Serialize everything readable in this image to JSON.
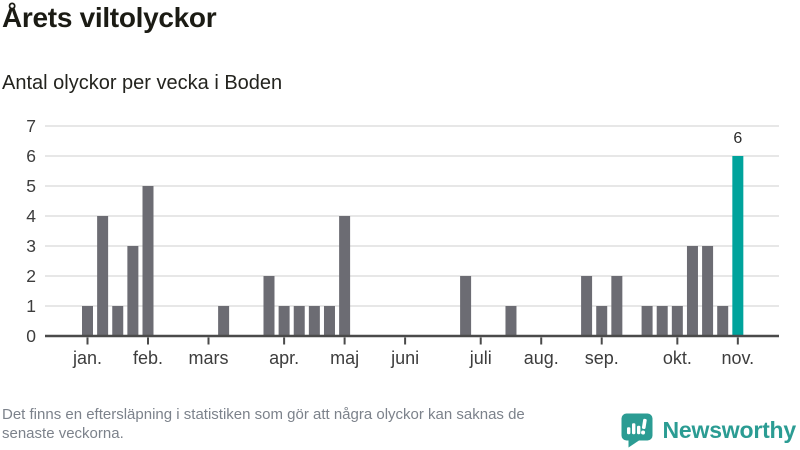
{
  "header": {
    "title": "Årets viltolyckor",
    "subtitle": "Antal olyckor per vecka i Boden"
  },
  "chart_data": {
    "type": "bar",
    "title": "Årets viltolyckor",
    "subtitle": "Antal olyckor per vecka i Boden",
    "x_unit": "vecka",
    "ylabel": "Antal olyckor",
    "ylim": [
      0,
      7
    ],
    "grid": true,
    "y_ticks": [
      0,
      1,
      2,
      3,
      4,
      5,
      6,
      7
    ],
    "values": [
      1,
      4,
      1,
      3,
      5,
      0,
      0,
      0,
      0,
      1,
      0,
      0,
      2,
      1,
      1,
      1,
      1,
      4,
      0,
      0,
      0,
      0,
      0,
      0,
      0,
      2,
      0,
      0,
      1,
      0,
      0,
      0,
      0,
      2,
      1,
      2,
      0,
      1,
      1,
      1,
      3,
      3,
      1,
      6
    ],
    "x_ticks": [
      {
        "label": "jan.",
        "week": 0
      },
      {
        "label": "feb.",
        "week": 4
      },
      {
        "label": "mars",
        "week": 8
      },
      {
        "label": "apr.",
        "week": 13
      },
      {
        "label": "maj",
        "week": 17
      },
      {
        "label": "juni",
        "week": 21
      },
      {
        "label": "juli",
        "week": 26
      },
      {
        "label": "aug.",
        "week": 30
      },
      {
        "label": "sep.",
        "week": 34
      },
      {
        "label": "okt.",
        "week": 39
      },
      {
        "label": "nov.",
        "week": 43
      }
    ],
    "bar_color": "#6c6c73",
    "highlight": {
      "index": 43,
      "value": 6,
      "label": "6",
      "color": "#00a39c"
    }
  },
  "footer": {
    "note": "Det finns en eftersläpning i statistiken som gör att några olyckor kan saknas de senaste veckorna.",
    "note_lines": [
      "Det finns en eftersläpning i statistiken som gör att några olyckor kan saknas de",
      "senaste veckorna."
    ],
    "brand": "Newsworthy",
    "brand_color": "#2b9c93"
  }
}
